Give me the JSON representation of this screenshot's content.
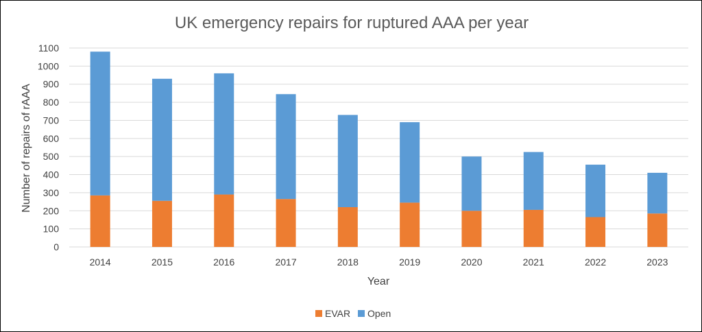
{
  "chart_data": {
    "type": "bar",
    "stacked": true,
    "title": "UK emergency repairs for ruptured AAA per year",
    "xlabel": "Year",
    "ylabel": "Number of repairs of rAAA",
    "categories": [
      "2014",
      "2015",
      "2016",
      "2017",
      "2018",
      "2019",
      "2020",
      "2021",
      "2022",
      "2023"
    ],
    "series": [
      {
        "name": "EVAR",
        "color": "#ED7D31",
        "values": [
          285,
          255,
          290,
          265,
          220,
          245,
          200,
          205,
          165,
          185
        ]
      },
      {
        "name": "Open",
        "color": "#5B9BD5",
        "values": [
          795,
          675,
          670,
          580,
          510,
          445,
          300,
          320,
          290,
          225
        ]
      }
    ],
    "ylim": [
      0,
      1100
    ],
    "yticks": [
      0,
      100,
      200,
      300,
      400,
      500,
      600,
      700,
      800,
      900,
      1000,
      1100
    ],
    "grid": true,
    "legend": "bottom"
  }
}
